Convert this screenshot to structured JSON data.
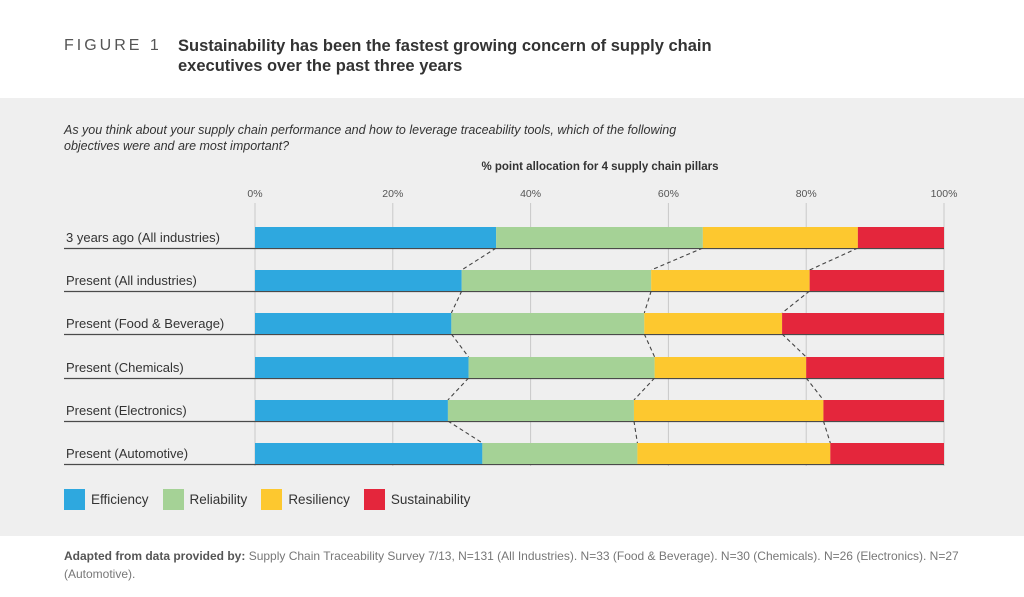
{
  "figure": {
    "label": "FIGURE 1",
    "title": "Sustainability has been the fastest growing concern of supply chain executives over the past three years"
  },
  "question": "As you think about your supply chain performance and how to leverage traceability tools, which of the following objectives were and are most important?",
  "chart_data": {
    "type": "bar",
    "orientation": "horizontal-stacked-100",
    "title": "% point allocation for 4 supply chain pillars",
    "x_ticks": [
      "0%",
      "20%",
      "40%",
      "60%",
      "80%",
      "100%"
    ],
    "xlim": [
      0,
      100
    ],
    "categories": [
      "3 years ago (All industries)",
      "Present (All industries)",
      "Present (Food & Beverage)",
      "Present (Chemicals)",
      "Present (Electronics)",
      "Present (Automotive)"
    ],
    "series": [
      {
        "name": "Efficiency",
        "color": "#2ea8df",
        "values": [
          35,
          30,
          28.5,
          31,
          28,
          33
        ]
      },
      {
        "name": "Reliability",
        "color": "#a5d296",
        "values": [
          30,
          27.5,
          28,
          27,
          27,
          22.5
        ]
      },
      {
        "name": "Resiliency",
        "color": "#fdc82f",
        "values": [
          22.5,
          23,
          20,
          22,
          27.5,
          28
        ]
      },
      {
        "name": "Sustainability",
        "color": "#e4263c",
        "values": [
          12.5,
          19.5,
          23.5,
          20,
          17.5,
          16.5
        ]
      }
    ]
  },
  "source": {
    "bold": "Adapted from data provided by:",
    "text": " Supply Chain Traceability Survey 7/13, N=131 (All Industries). N=33 (Food & Beverage). N=30 (Chemicals). N=26 (Electronics). N=27 (Automotive)."
  }
}
